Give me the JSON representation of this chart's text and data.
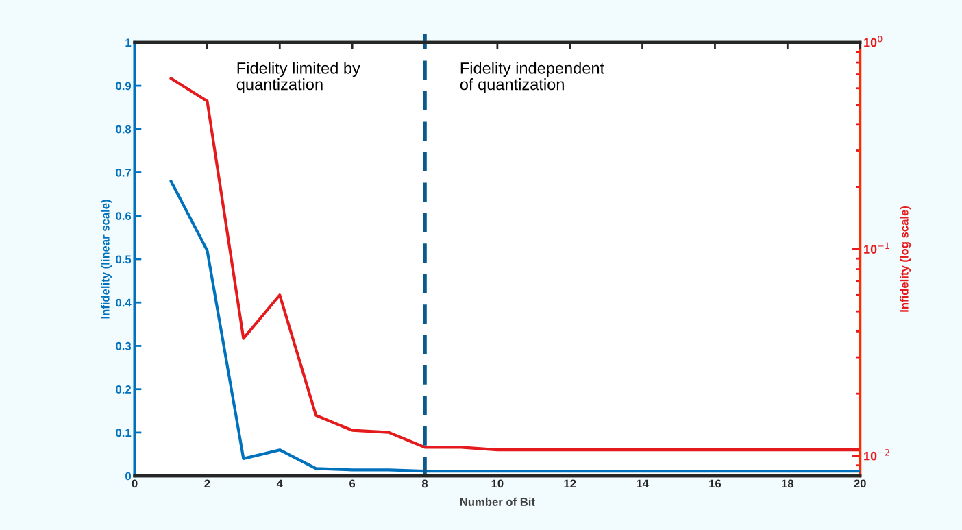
{
  "chart_data": {
    "type": "line",
    "xlabel": "Number of Bit",
    "ylabel": "Infidelity (linear scale)",
    "y2label": "Infidelity (log scale)",
    "x": [
      1,
      2,
      3,
      4,
      5,
      6,
      7,
      8,
      9,
      10,
      11,
      12,
      13,
      14,
      15,
      16,
      17,
      18,
      19,
      20
    ],
    "series": [
      {
        "color": "#0072bd",
        "values": [
          0.68,
          0.52,
          0.04,
          0.06,
          0.017,
          0.014,
          0.014,
          0.011,
          0.011,
          0.011,
          0.011,
          0.011,
          0.011,
          0.011,
          0.011,
          0.011,
          0.011,
          0.011,
          0.011,
          0.011
        ]
      },
      {
        "color": "#e41a1c",
        "axis": "y2",
        "values": [
          0.67,
          0.52,
          0.037,
          0.06,
          0.0157,
          0.0133,
          0.013,
          0.011,
          0.011,
          0.0107,
          0.0107,
          0.0107,
          0.0107,
          0.0107,
          0.0107,
          0.0107,
          0.0107,
          0.0107,
          0.0107,
          0.0107
        ]
      }
    ],
    "xlim": [
      0,
      20
    ],
    "xticks": [
      0,
      2,
      4,
      6,
      8,
      10,
      12,
      14,
      16,
      18,
      20
    ],
    "ylim": [
      0,
      1
    ],
    "yticks": [
      0,
      0.1,
      0.2,
      0.3,
      0.4,
      0.5,
      0.6,
      0.7,
      0.8,
      0.9,
      1
    ],
    "y2lim": [
      0.008,
      1
    ],
    "y2ticks": [
      {
        "value": 0.01,
        "label": "10$^{−2}$"
      },
      {
        "value": 0.1,
        "label": "10$^{−1}$"
      },
      {
        "value": 1,
        "label": "10$^{0}$"
      }
    ],
    "log": "y2",
    "grid": false,
    "legend": false,
    "line_style": "solid",
    "marker": "none",
    "ref_lines": [
      {
        "axis": "x",
        "value": 8,
        "color": "#0b5a8a",
        "line_style": "dashed"
      }
    ],
    "annotations": [
      "Fidelity limited by\nquantization",
      "Fidelity independent\nof quantization"
    ]
  }
}
